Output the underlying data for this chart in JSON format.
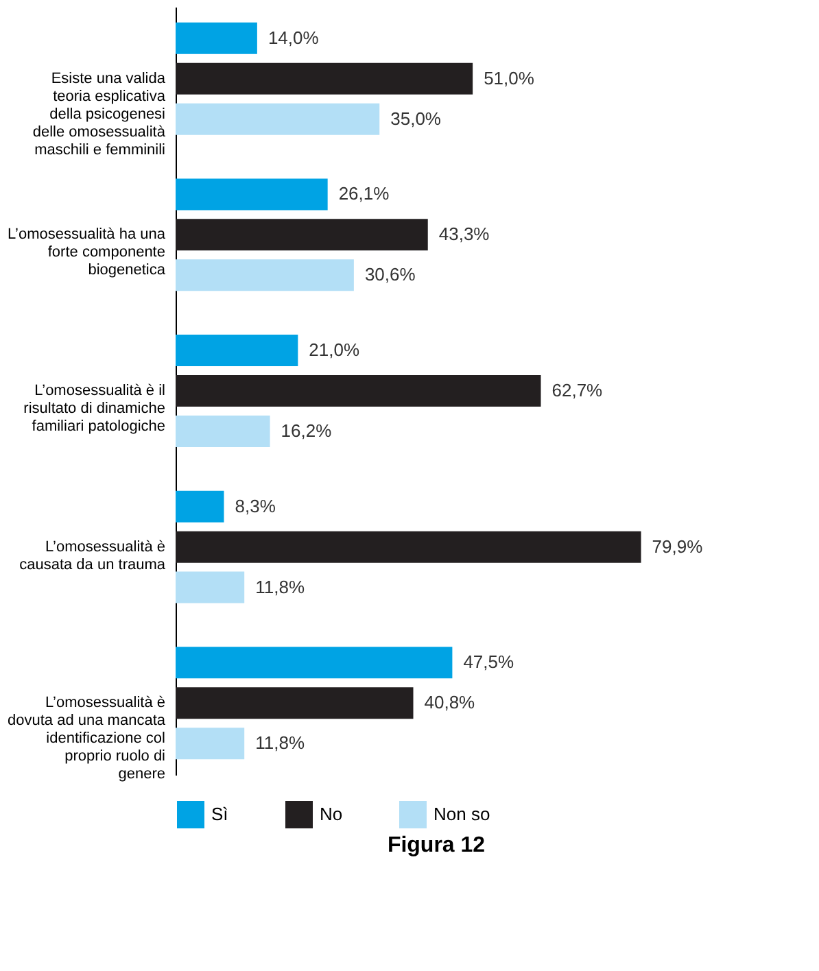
{
  "chart_data": {
    "type": "bar",
    "orientation": "horizontal",
    "title": "Figura 12",
    "categories": [
      "Esiste una valida teoria esplicativa della psicogenesi delle omosessualità maschili e femminili",
      "L’omosessualità ha una forte componente biogenetica",
      "L’omosessualità è il risultato di dinamiche familiari patologiche",
      "L’omosessualità è causata da un trauma",
      "L’omosessualità è dovuta ad una mancata identificazione col proprio ruolo di genere"
    ],
    "series": [
      {
        "name": "Sì",
        "color": "#00a3e4",
        "values": [
          14.0,
          26.1,
          21.0,
          8.3,
          47.5
        ],
        "value_labels": [
          "14,0%",
          "26,1%",
          "21,0%",
          "8,3%",
          "47,5%"
        ]
      },
      {
        "name": "No",
        "color": "#231f20",
        "values": [
          51.0,
          43.3,
          62.7,
          79.9,
          40.8
        ],
        "value_labels": [
          "51,0%",
          "43,3%",
          "62,7%",
          "79,9%",
          "40,8%"
        ]
      },
      {
        "name": "Non so",
        "color": "#b3dff6",
        "values": [
          35.0,
          30.6,
          16.2,
          11.8,
          11.8
        ],
        "value_labels": [
          "35,0%",
          "30,6%",
          "16,2%",
          "11,8%",
          "11,8%"
        ]
      }
    ],
    "tick_labels": "y",
    "legend": "bottom",
    "grid": false
  }
}
